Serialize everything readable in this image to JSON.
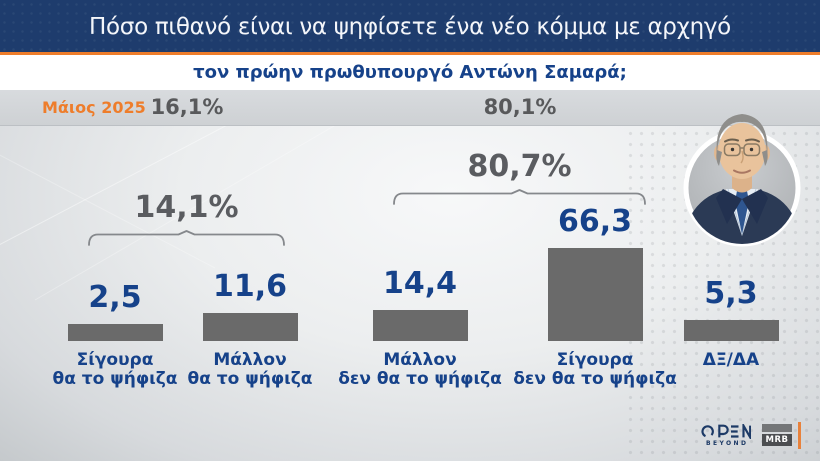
{
  "header": {
    "title": "Πόσο πιθανό είναι να ψηφίσετε ένα νέο κόμμα με αρχηγό",
    "subtitle": "τον πρώην πρωθυπουργό Αντώνη Σαμαρά;"
  },
  "chart_data": {
    "type": "bar",
    "title": "Πόσο πιθανό είναι να ψηφίσετε ένα νέο κόμμα με αρχηγό τον πρώην πρωθυπουργό Αντώνη Σαμαρά;",
    "unit": "%",
    "ylim": [
      0,
      100
    ],
    "grid": false,
    "legend": false,
    "categories": [
      "Σίγουρα θα το ψήφιζα",
      "Μάλλον θα το ψήφιζα",
      "Μάλλον δεν θα το ψήφιζα",
      "Σίγουρα δεν θα το ψήφιζα",
      "ΔΞ/ΔΑ"
    ],
    "category_lines": [
      [
        "Σίγουρα",
        "θα το ψήφιζα"
      ],
      [
        "Μάλλον",
        "θα το ψήφιζα"
      ],
      [
        "Μάλλον",
        "δεν θα το ψήφιζα"
      ],
      [
        "Σίγουρα",
        "δεν θα το ψήφιζα"
      ],
      [
        "ΔΞ/ΔΑ"
      ]
    ],
    "values": [
      2.5,
      11.6,
      14.4,
      66.3,
      5.3
    ],
    "value_labels": [
      "2,5",
      "11,6",
      "14,4",
      "66,3",
      "5,3"
    ],
    "group_brackets": [
      {
        "label": "14,1%",
        "value": 14.1,
        "bars": [
          0,
          1
        ]
      },
      {
        "label": "80,7%",
        "value": 80.7,
        "bars": [
          2,
          3
        ]
      }
    ],
    "context_row": {
      "date": "Μάιος 2025",
      "values": [
        "16,1%",
        "80,1%"
      ]
    }
  },
  "footer": {
    "open": "OPEN",
    "open_tagline": "BEYOND",
    "mrb": "MRB"
  },
  "colors": {
    "banner_navy": "#1e3c6d",
    "accent_orange": "#ee7d2b",
    "text_navy": "#16428a",
    "text_gray": "#58595b",
    "bar_gray": "#6a6a6a",
    "band_gray": "#d4d7da"
  }
}
